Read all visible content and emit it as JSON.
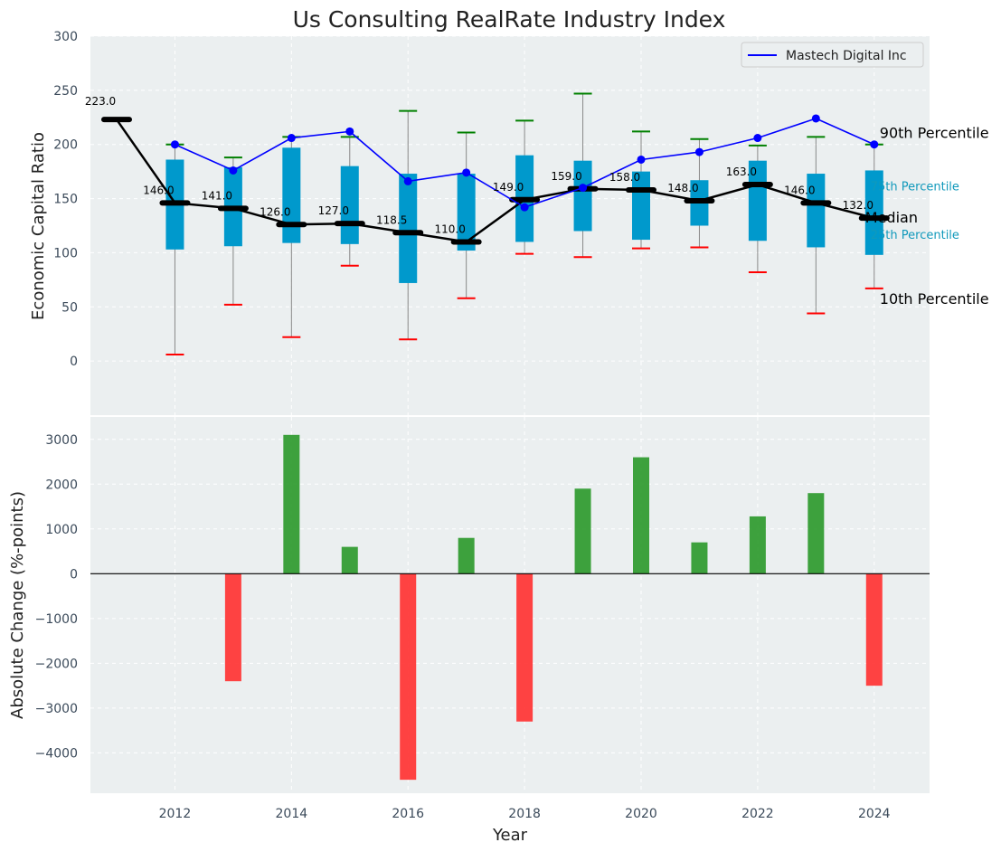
{
  "chart_data": [
    {
      "type": "box",
      "title": "Us Consulting RealRate Industry Index",
      "ylabel": "Economic Capital Ratio",
      "ylim": [
        -50,
        300
      ],
      "yticks": [
        0,
        50,
        100,
        150,
        200,
        250,
        300
      ],
      "xlim": [
        2010.55,
        2024.95
      ],
      "grid": true,
      "legend": {
        "position": "top-right",
        "label": "Mastech Digital Inc"
      },
      "colors": {
        "box": "#0099cc",
        "median": "#000000",
        "company": "#0000ff",
        "p90": "#008000",
        "p10": "#ff0000",
        "whisker": "#888888"
      },
      "years": [
        2011,
        2012,
        2013,
        2014,
        2015,
        2016,
        2017,
        2018,
        2019,
        2020,
        2021,
        2022,
        2023,
        2024
      ],
      "median": [
        223.0,
        146.0,
        141.0,
        126.0,
        127.0,
        118.5,
        110.0,
        149.0,
        159.0,
        158.0,
        148.0,
        163.0,
        146.0,
        132.0
      ],
      "median_labels": [
        "223.0",
        "146.0",
        "141.0",
        "126.0",
        "127.0",
        "118.5",
        "110.0",
        "149.0",
        "159.0",
        "158.0",
        "148.0",
        "163.0",
        "146.0",
        "132.0"
      ],
      "q1": [
        null,
        103,
        106,
        109,
        108,
        72,
        102,
        110,
        120,
        112,
        125,
        111,
        105,
        98
      ],
      "q3": [
        null,
        186,
        179,
        197,
        180,
        173,
        173,
        190,
        185,
        175,
        167,
        185,
        173,
        176
      ],
      "p10": [
        null,
        6,
        52,
        22,
        88,
        20,
        58,
        99,
        96,
        104,
        105,
        82,
        44,
        67
      ],
      "p90": [
        null,
        200,
        188,
        207,
        207,
        231,
        211,
        222,
        247,
        212,
        205,
        199,
        207,
        200
      ],
      "company": [
        null,
        200,
        176,
        206,
        212,
        166,
        174,
        142,
        160,
        186,
        193,
        206,
        224,
        200
      ],
      "side_labels": {
        "p90": "90th Percentile",
        "q3": "75th Percentile",
        "median": "Median",
        "q1": "25th Percentile",
        "p10": "10th Percentile"
      }
    },
    {
      "type": "bar",
      "ylabel": "Absolute Change (%-points)",
      "xlabel": "Year",
      "ylim": [
        -4900,
        3500
      ],
      "yticks": [
        -4000,
        -3000,
        -2000,
        -1000,
        0,
        1000,
        2000,
        3000
      ],
      "ytick_labels": [
        "−4000",
        "−3000",
        "−2000",
        "−1000",
        "0",
        "1000",
        "2000",
        "3000"
      ],
      "xticks": [
        2012,
        2014,
        2016,
        2018,
        2020,
        2022,
        2024
      ],
      "colors": {
        "positive": "#2e9a2e",
        "negative": "#ff3333"
      },
      "years": [
        2012,
        2013,
        2014,
        2015,
        2016,
        2017,
        2018,
        2019,
        2020,
        2021,
        2022,
        2023,
        2024
      ],
      "values": [
        0,
        -2400,
        3100,
        600,
        -4600,
        800,
        -3300,
        1900,
        2600,
        700,
        1280,
        1800,
        -2500
      ]
    }
  ]
}
